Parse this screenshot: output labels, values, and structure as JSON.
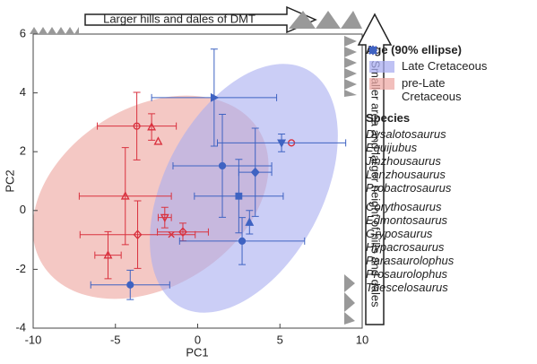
{
  "chart_data": {
    "type": "scatter",
    "x_label": "PC1",
    "y_label": "PC2",
    "xlim": [
      -10,
      10
    ],
    "ylim": [
      -4,
      6
    ],
    "xticks": [
      -10,
      -5,
      0,
      5,
      10
    ],
    "yticks": [
      -4,
      -2,
      0,
      2,
      4,
      6
    ],
    "annotations": {
      "top_arrow": "Larger hills and dales of DMT",
      "right_arrow": "Smaller area and larger height of hills and dales"
    },
    "age_legend_title": "Age (90% ellipse)",
    "age_groups": [
      {
        "name": "Late Cretaceous",
        "color": "#a9adf0"
      },
      {
        "name": "pre-Late Cretaceous",
        "color": "#eeaaa5"
      }
    ],
    "species_legend_title": "Species",
    "series": [
      {
        "name": "Dysalotosaurus",
        "color": "#d9323f",
        "marker": "circle",
        "filled": false,
        "x": [
          -3.7,
          5.7
        ],
        "y": [
          2.87,
          2.3
        ],
        "xerr": [
          2.4,
          null
        ],
        "yerr": [
          1.15,
          null
        ]
      },
      {
        "name": "Equijubus",
        "color": "#d9323f",
        "marker": "triangle",
        "filled": false,
        "x": [
          -2.8,
          -2.4,
          -4.4,
          -5.45
        ],
        "y": [
          2.84,
          2.35,
          0.49,
          -1.52
        ],
        "xerr": [
          null,
          null,
          2.8,
          0.8
        ],
        "yerr": [
          0.45,
          null,
          1.65,
          0.8
        ]
      },
      {
        "name": "Jinzhousaurus",
        "color": "#d9323f",
        "marker": "x",
        "filled": false,
        "x": [
          -1.6
        ],
        "y": [
          -0.82
        ],
        "xerr": [
          null
        ],
        "yerr": [
          null
        ]
      },
      {
        "name": "Lanzhousaurus",
        "color": "#d9323f",
        "marker": "down",
        "filled": false,
        "x": [
          -2.0
        ],
        "y": [
          -0.24
        ],
        "xerr": [
          0.4
        ],
        "yerr": [
          0.35
        ]
      },
      {
        "name": "Probactrosaurus",
        "color": "#d9323f",
        "marker": "diamond",
        "filled": false,
        "x": [
          -3.65,
          -0.9
        ],
        "y": [
          -0.82,
          -0.73
        ],
        "xerr": [
          3.5,
          1.55
        ],
        "yerr": [
          1.15,
          0.3
        ]
      },
      {
        "name": "Corythosaurus",
        "color": "#3f63c2",
        "marker": "circle",
        "filled": true,
        "x": [
          1.5,
          2.7,
          -4.1
        ],
        "y": [
          1.52,
          -1.04,
          -2.53
        ],
        "xerr": [
          3.0,
          3.8,
          2.4
        ],
        "yerr": [
          1.75,
          0.8,
          0.5
        ]
      },
      {
        "name": "Edmontosaurus",
        "color": "#3f63c2",
        "marker": "square",
        "filled": true,
        "x": [
          2.5
        ],
        "y": [
          0.49
        ],
        "xerr": [
          2.7
        ],
        "yerr": [
          1.25
        ]
      },
      {
        "name": "Gryposaurus",
        "color": "#3f63c2",
        "marker": "diamond",
        "filled": true,
        "x": [
          3.5
        ],
        "y": [
          1.3
        ],
        "xerr": [
          1.0
        ],
        "yerr": [
          1.5
        ]
      },
      {
        "name": "Hypacrosaurus",
        "color": "#3f63c2",
        "marker": "down",
        "filled": true,
        "x": [
          5.1
        ],
        "y": [
          2.3
        ],
        "xerr": [
          3.9
        ],
        "yerr": [
          0.3
        ]
      },
      {
        "name": "Parasaurolophus",
        "color": "#3f63c2",
        "marker": "triangle",
        "filled": true,
        "x": [
          3.15
        ],
        "y": [
          -0.4
        ],
        "xerr": [
          null
        ],
        "yerr": [
          0.4
        ]
      },
      {
        "name": "Prosaurolophus",
        "color": "#3f63c2",
        "marker": "right",
        "filled": true,
        "x": [
          1.0
        ],
        "y": [
          3.84
        ],
        "xerr": [
          3.8
        ],
        "yerr": [
          1.65
        ]
      },
      {
        "name": "Thescelosaurus",
        "color": "#3f63c2",
        "marker": "left",
        "filled": true,
        "x": [],
        "y": [],
        "xerr": [],
        "yerr": []
      }
    ]
  }
}
